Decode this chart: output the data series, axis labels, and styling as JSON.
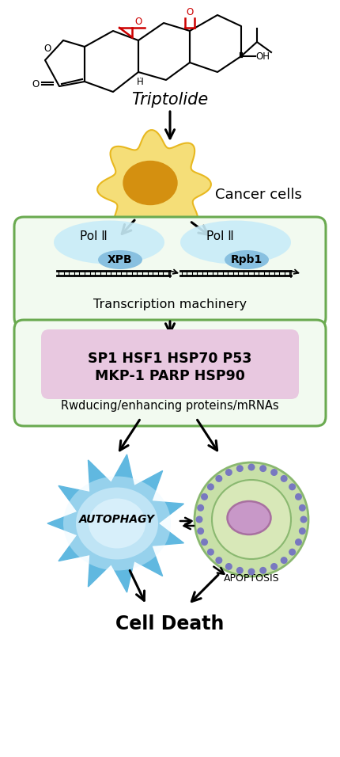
{
  "triptolide_label": "Triptolide",
  "cancer_cells_label": "Cancer cells",
  "transcription_label": "Transcription machinery",
  "proteins_line1": "SP1 HSF1 HSP70 P53",
  "proteins_line2": "MKP-1 PARP HSP90",
  "reducing_label": "Rwducing/enhancing proteins/mRNAs",
  "autophagy_label": "AUTOPHAGY",
  "apoptosis_label": "APOPTOSIS",
  "cell_death_label": "Cell Death",
  "pol_ii_label": "Pol Ⅱ",
  "xpb_label": "XPB",
  "rpb1_label": "Rpb1",
  "bg_color": "#ffffff",
  "green_box_color": "#6aaa50",
  "green_box_face": "#f2faf0",
  "pink_box_color": "#c898c0",
  "pink_box_face": "#e8c8e0",
  "blue_ellipse_color": "#c8ecf8",
  "blue_inner_ellipse": "#88c0e0",
  "cancer_cell_outer": "#f5de78",
  "cancer_cell_outer_edge": "#e8b820",
  "cancer_cell_inner": "#d49010",
  "autophagy_outer_color": "#60b8e0",
  "autophagy_inner_color": "#c8eaf8",
  "autophagy_glow": "#e8f8ff",
  "cell_outer_color": "#8ab870",
  "cell_outer_face": "#c8e0a8",
  "cell_mid_face": "#d8e8b8",
  "cell_inner_color": "#c898c8",
  "cell_nucleus_edge": "#a870a0",
  "dot_color": "#7878c0"
}
